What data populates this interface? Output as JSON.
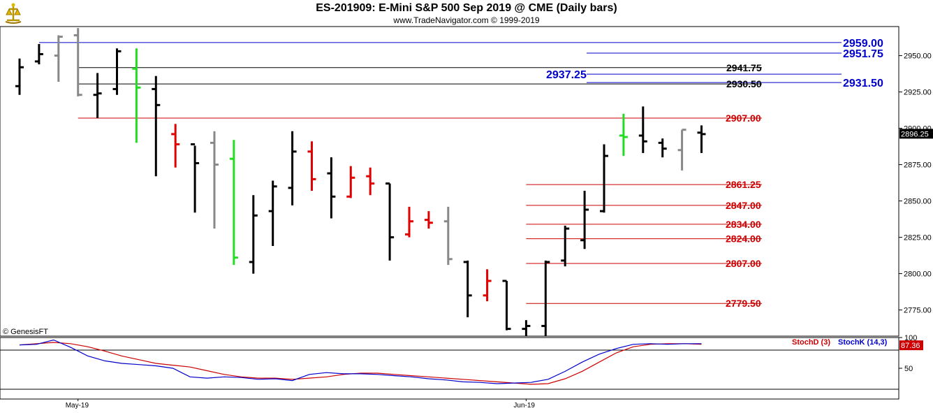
{
  "header": {
    "title": "ES-201909:  E-Mini S&P 500 Sep 2019 @ CME  (Daily bars)",
    "subtitle": "www.TradeNavigator.com © 1999-2019"
  },
  "copyright": "© GenesisFT",
  "colors": {
    "up_green": "#22dd22",
    "down_red": "#e00000",
    "gray": "#888888",
    "blue_level": "#0000cc",
    "red_level": "#cc0000",
    "stochD": "#cc0000",
    "stochK": "#0000cc"
  },
  "chart_data": [
    {
      "type": "ohlc",
      "title": "ES-201909:  E-Mini S&P 500 Sep 2019 @ CME  (Daily bars)",
      "x_labels": [
        "May-19",
        "Jun-19"
      ],
      "ylim": [
        2757,
        2970
      ],
      "yticks": [
        "2950.00",
        "2925.00",
        "2900.00",
        "2875.00",
        "2850.00",
        "2825.00",
        "2800.00",
        "2775.00"
      ],
      "last_price": "2896.25",
      "bars": [
        {
          "h": 2948,
          "l": 2923,
          "o": 2929,
          "c": 2942,
          "color": "black"
        },
        {
          "h": 2958,
          "l": 2944,
          "o": 2946,
          "c": 2951,
          "color": "black"
        },
        {
          "h": 2964,
          "l": 2932,
          "o": 2950,
          "c": 2963,
          "color": "gray"
        },
        {
          "h": 2969,
          "l": 2922,
          "o": 2964,
          "c": 2923,
          "color": "gray"
        },
        {
          "h": 2938,
          "l": 2907,
          "o": 2923,
          "c": 2924,
          "color": "black"
        },
        {
          "h": 2955,
          "l": 2923,
          "o": 2927,
          "c": 2953,
          "color": "black"
        },
        {
          "h": 2955,
          "l": 2890,
          "o": 2941,
          "c": 2928,
          "color": "green"
        },
        {
          "h": 2936,
          "l": 2867,
          "o": 2927,
          "c": 2916,
          "color": "black"
        },
        {
          "h": 2903,
          "l": 2873,
          "o": 2896,
          "c": 2889,
          "color": "red"
        },
        {
          "h": 2888,
          "l": 2842,
          "o": 2889,
          "c": 2876,
          "color": "black"
        },
        {
          "h": 2898,
          "l": 2831,
          "o": 2890,
          "c": 2875,
          "color": "gray"
        },
        {
          "h": 2892,
          "l": 2806,
          "o": 2879,
          "c": 2811,
          "color": "green"
        },
        {
          "h": 2854,
          "l": 2800,
          "o": 2808,
          "c": 2840,
          "color": "black"
        },
        {
          "h": 2864,
          "l": 2819,
          "o": 2843,
          "c": 2860,
          "color": "black"
        },
        {
          "h": 2898,
          "l": 2847,
          "o": 2859,
          "c": 2884,
          "color": "black"
        },
        {
          "h": 2891,
          "l": 2857,
          "o": 2884,
          "c": 2865,
          "color": "red"
        },
        {
          "h": 2880,
          "l": 2838,
          "o": 2869,
          "c": 2853,
          "color": "black"
        },
        {
          "h": 2874,
          "l": 2852,
          "o": 2853,
          "c": 2866,
          "color": "red"
        },
        {
          "h": 2873,
          "l": 2854,
          "o": 2867,
          "c": 2862,
          "color": "red"
        },
        {
          "h": 2862,
          "l": 2809,
          "o": 2862,
          "c": 2825,
          "color": "black"
        },
        {
          "h": 2846,
          "l": 2825,
          "o": 2827,
          "c": 2836,
          "color": "red"
        },
        {
          "h": 2843,
          "l": 2831,
          "o": 2837,
          "c": 2835,
          "color": "red"
        },
        {
          "h": 2846,
          "l": 2806,
          "o": 2836,
          "c": 2810,
          "color": "gray"
        },
        {
          "h": 2809,
          "l": 2770,
          "o": 2808,
          "c": 2785,
          "color": "black"
        },
        {
          "h": 2803,
          "l": 2781,
          "o": 2785,
          "c": 2795,
          "color": "red"
        },
        {
          "h": 2795,
          "l": 2761,
          "o": 2795,
          "c": 2762,
          "color": "black"
        },
        {
          "h": 2768,
          "l": 2757,
          "o": 2762,
          "c": 2764,
          "color": "black"
        },
        {
          "h": 2809,
          "l": 2757,
          "o": 2764,
          "c": 2808,
          "color": "black"
        },
        {
          "h": 2833,
          "l": 2805,
          "o": 2809,
          "c": 2831,
          "color": "black"
        },
        {
          "h": 2857,
          "l": 2817,
          "o": 2823,
          "c": 2844,
          "color": "black"
        },
        {
          "h": 2889,
          "l": 2842,
          "o": 2843,
          "c": 2881,
          "color": "black"
        },
        {
          "h": 2910,
          "l": 2881,
          "o": 2895,
          "c": 2894,
          "color": "green"
        },
        {
          "h": 2915,
          "l": 2883,
          "o": 2895,
          "c": 2891,
          "color": "black"
        },
        {
          "h": 2893,
          "l": 2880,
          "o": 2890,
          "c": 2886,
          "color": "black"
        },
        {
          "h": 2899,
          "l": 2871,
          "o": 2885,
          "c": 2899,
          "color": "gray"
        },
        {
          "h": 2902,
          "l": 2883,
          "o": 2897,
          "c": 2896,
          "color": "black"
        }
      ],
      "levels_right": [
        {
          "value": 2959.0,
          "label": "2959.00",
          "color": "blue",
          "x_from": "start"
        },
        {
          "value": 2951.75,
          "label": "2951.75",
          "color": "blue",
          "x_from": "late"
        },
        {
          "value": 2931.5,
          "label": "2931.50",
          "color": "blue",
          "x_from": "late"
        }
      ],
      "levels_mid": [
        {
          "value": 2941.75,
          "label": "2941.75",
          "color": "black"
        },
        {
          "value": 2930.5,
          "label": "2930.50",
          "color": "black"
        },
        {
          "value": 2937.25,
          "label": "2937.25",
          "color": "blue"
        }
      ],
      "levels_red": [
        {
          "value": 2907.0,
          "label": "2907.00"
        },
        {
          "value": 2861.25,
          "label": "2861.25"
        },
        {
          "value": 2847.0,
          "label": "2847.00"
        },
        {
          "value": 2834.0,
          "label": "2834.00"
        },
        {
          "value": 2824.0,
          "label": "2824.00"
        },
        {
          "value": 2807.0,
          "label": "2807.00"
        },
        {
          "value": 2779.5,
          "label": "2779.50"
        }
      ]
    },
    {
      "type": "line",
      "title": "",
      "ylim": [
        0,
        100
      ],
      "yticks": [
        "100",
        "50"
      ],
      "last_value": "87.36",
      "legend": [
        "StochD (3)",
        "StochK (14,3)"
      ],
      "series": [
        {
          "name": "StochD (3)",
          "color": "red",
          "values": [
            88,
            90,
            92,
            90,
            85,
            78,
            70,
            64,
            58,
            55,
            52,
            46,
            40,
            36,
            34,
            34,
            32,
            34,
            36,
            40,
            42,
            42,
            40,
            38,
            36,
            34,
            32,
            30,
            28,
            26,
            24,
            25,
            33,
            45,
            60,
            75,
            85,
            89,
            90,
            90,
            89
          ]
        },
        {
          "name": "StochK (14,3)",
          "color": "blue",
          "values": [
            88,
            89,
            96,
            84,
            70,
            62,
            58,
            56,
            54,
            50,
            36,
            34,
            36,
            35,
            32,
            33,
            30,
            40,
            43,
            41,
            41,
            40,
            38,
            36,
            33,
            31,
            28,
            27,
            25,
            26,
            27,
            32,
            45,
            60,
            73,
            82,
            89,
            90,
            89,
            90,
            90
          ]
        }
      ]
    }
  ]
}
